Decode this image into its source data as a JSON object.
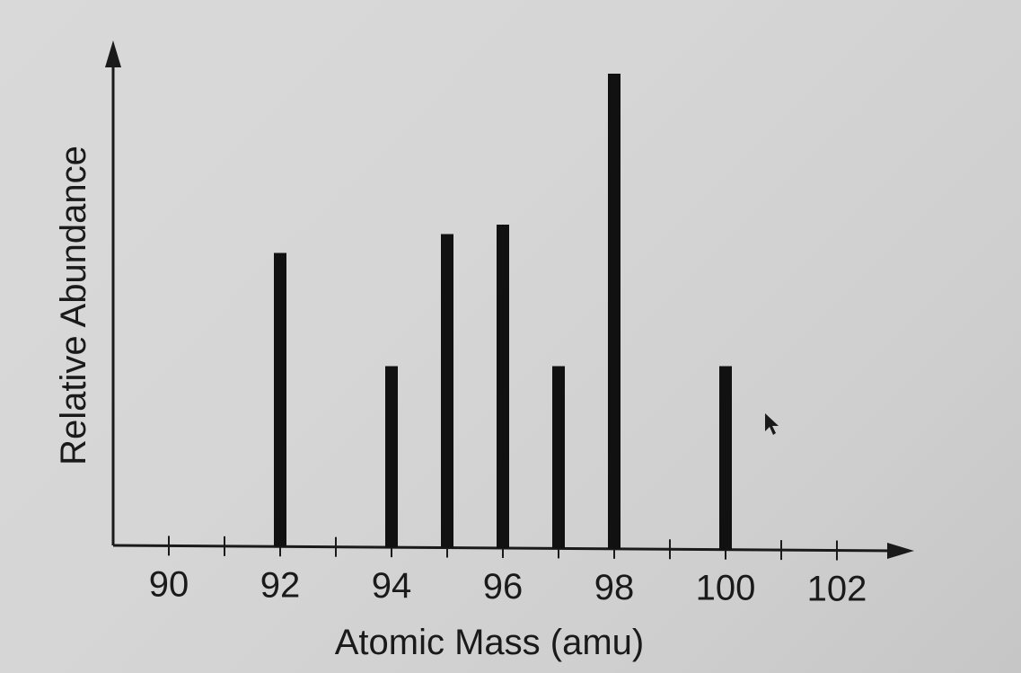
{
  "chart_data": {
    "type": "bar",
    "title": "",
    "xlabel": "Atomic Mass (amu)",
    "ylabel": "Relative Abundance",
    "x_ticks": [
      90,
      91,
      92,
      93,
      94,
      95,
      96,
      97,
      98,
      99,
      100,
      101,
      102
    ],
    "x_tick_labels": [
      {
        "value": 90,
        "label": "90"
      },
      {
        "value": 92,
        "label": "92"
      },
      {
        "value": 94,
        "label": "94"
      },
      {
        "value": 96,
        "label": "96"
      },
      {
        "value": 98,
        "label": "98"
      },
      {
        "value": 100,
        "label": "100"
      },
      {
        "value": 102,
        "label": "102"
      }
    ],
    "xlim": [
      89.4,
      103.4
    ],
    "ylim": [
      0,
      100
    ],
    "y_ticks": [],
    "series": [
      {
        "x": [
          92,
          94,
          95,
          96,
          97,
          98,
          100
        ],
        "values": [
          62,
          38,
          66,
          68,
          38,
          100,
          38
        ]
      }
    ],
    "grid": false,
    "legend": "none",
    "bar_color": "#111111",
    "axis_color": "#1a1a1a"
  }
}
